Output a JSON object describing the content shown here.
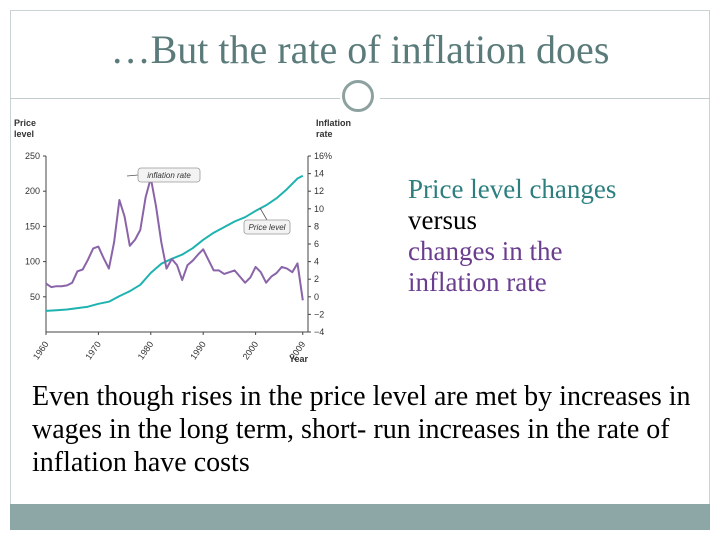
{
  "slide": {
    "title": "…But the rate of inflation does",
    "side_text": {
      "line1": "Price level changes",
      "line2": "versus",
      "line3": "changes in the",
      "line4": "inflation rate"
    },
    "body": "Even though rises in the price level are met by increases in wages in the long term, short- run increases in the rate of inflation have costs"
  },
  "colors": {
    "title": "#5b7b7b",
    "price_line": "#1fb3b0",
    "inflation_line": "#8a64a8",
    "footer": "#8da7a7"
  },
  "chart_data": {
    "type": "line",
    "left_axis": {
      "label": "Price level",
      "range": [
        0,
        250
      ],
      "ticks": [
        "250",
        "200",
        "150",
        "100",
        "50"
      ],
      "tick_values": [
        250,
        200,
        150,
        100,
        50
      ]
    },
    "right_axis": {
      "label": "Inflation rate",
      "range": [
        -4,
        16
      ],
      "ticks": [
        "16%",
        "14",
        "12",
        "10",
        "8",
        "6",
        "4",
        "2",
        "0",
        "−2",
        "−4"
      ],
      "tick_values": [
        16,
        14,
        12,
        10,
        8,
        6,
        4,
        2,
        0,
        -2,
        -4
      ]
    },
    "x_axis": {
      "label": "Year",
      "range": [
        1960,
        2010
      ],
      "ticks": [
        "1960",
        "1970",
        "1980",
        "1990",
        "2000",
        "2009"
      ],
      "tick_values": [
        1960,
        1970,
        1980,
        1990,
        2000,
        2009
      ]
    },
    "annotations": [
      "inflation rate",
      "Price level"
    ],
    "series": [
      {
        "name": "Price level",
        "axis": "left",
        "x": [
          1960,
          1962,
          1964,
          1966,
          1968,
          1970,
          1972,
          1974,
          1976,
          1978,
          1980,
          1982,
          1984,
          1986,
          1988,
          1990,
          1992,
          1994,
          1996,
          1998,
          2000,
          2002,
          2004,
          2006,
          2008,
          2009
        ],
        "values": [
          30,
          31,
          32,
          34,
          36,
          40,
          43,
          51,
          58,
          67,
          84,
          97,
          104,
          110,
          119,
          131,
          141,
          149,
          157,
          163,
          172,
          180,
          190,
          203,
          218,
          222
        ]
      },
      {
        "name": "Inflation rate",
        "axis": "right",
        "x": [
          1960,
          1961,
          1962,
          1963,
          1964,
          1965,
          1966,
          1967,
          1968,
          1969,
          1970,
          1971,
          1972,
          1973,
          1974,
          1975,
          1976,
          1977,
          1978,
          1979,
          1980,
          1981,
          1982,
          1983,
          1984,
          1985,
          1986,
          1987,
          1988,
          1989,
          1990,
          1991,
          1992,
          1993,
          1994,
          1995,
          1996,
          1997,
          1998,
          1999,
          2000,
          2001,
          2002,
          2003,
          2004,
          2005,
          2006,
          2007,
          2008,
          2009
        ],
        "values": [
          1.5,
          1.1,
          1.2,
          1.2,
          1.3,
          1.6,
          2.9,
          3.1,
          4.2,
          5.5,
          5.7,
          4.4,
          3.2,
          6.2,
          11.0,
          9.1,
          5.8,
          6.5,
          7.6,
          11.3,
          13.5,
          10.3,
          6.2,
          3.2,
          4.3,
          3.6,
          1.9,
          3.6,
          4.1,
          4.8,
          5.4,
          4.2,
          3.0,
          3.0,
          2.6,
          2.8,
          3.0,
          2.3,
          1.6,
          2.2,
          3.4,
          2.8,
          1.6,
          2.3,
          2.7,
          3.4,
          3.2,
          2.8,
          3.8,
          -0.4
        ]
      }
    ]
  }
}
